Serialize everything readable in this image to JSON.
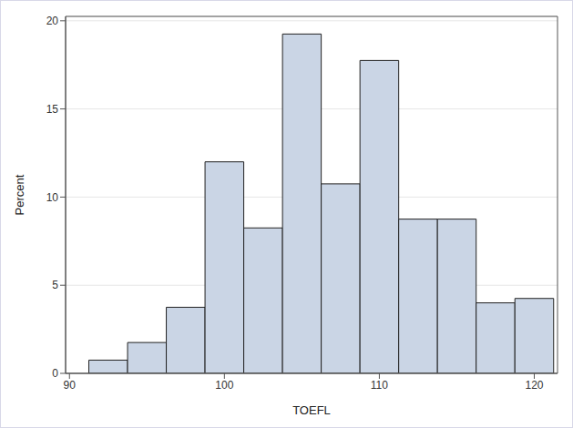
{
  "chart_data": {
    "type": "histogram",
    "x_label": "TOEFL",
    "y_label": "Percent",
    "bins": [
      91.25,
      93.75,
      96.25,
      98.75,
      101.25,
      103.75,
      106.25,
      108.75,
      111.25,
      113.75,
      116.25,
      118.75,
      121.25
    ],
    "values": [
      0.75,
      1.75,
      3.75,
      12,
      8.25,
      19.25,
      10.75,
      17.75,
      8.75,
      8.75,
      4,
      4.25
    ],
    "color": "#cad5e5",
    "xlim": [
      89.75,
      121.5
    ],
    "xticks": [
      90,
      100,
      110,
      120
    ],
    "ylim": [
      0,
      20.25
    ],
    "yticks": [
      0,
      5,
      10,
      15,
      20
    ],
    "grid": true
  }
}
